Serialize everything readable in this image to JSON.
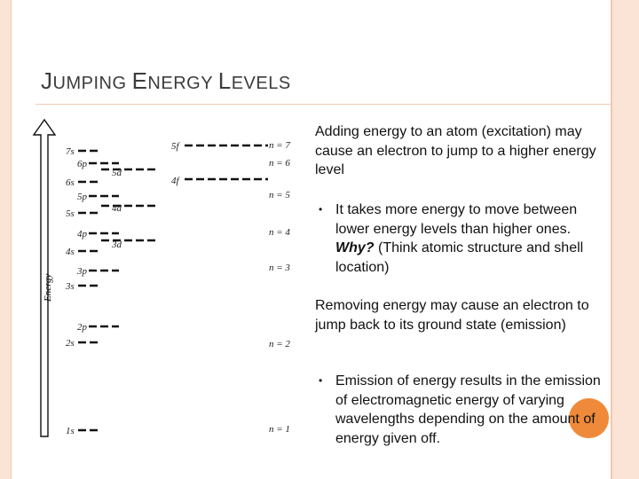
{
  "slide": {
    "title_first_J": "J",
    "title_umping": "UMPING ",
    "title_first_E": "E",
    "title_nergy": "NERGY ",
    "title_first_L": "L",
    "title_evels": "EVELS"
  },
  "text": {
    "para1": "Adding energy to an atom (excitation) may cause an electron to jump to a higher energy level",
    "bullet1_main": "It takes more energy to move between lower energy levels than higher ones. ",
    "bullet1_why": "Why?",
    "bullet1_rest": " (Think atomic structure and shell location)",
    "para2": "Removing energy  may cause an electron to jump back to its ground state (emission)",
    "bullet2": "Emission of energy results in the emission of  electromagnetic energy of varying wavelengths depending on the amount of energy given off.",
    "bullet_char": "•"
  },
  "diagram": {
    "axis_label": "Energy",
    "orbitals": {
      "s7": "7s",
      "p6": "6p",
      "s6": "6s",
      "p5": "5p",
      "s5": "5s",
      "p4": "4p",
      "s4": "4s",
      "p3": "3p",
      "s3": "3s",
      "p2": "2p",
      "s2": "2s",
      "s1": "1s",
      "d5": "5d",
      "d4": "4d",
      "d3": "3d",
      "f5": "5f",
      "f4": "4f"
    },
    "shells": {
      "n7": "n = 7",
      "n6": "n = 6",
      "n5": "n = 5",
      "n4": "n = 4",
      "n3": "n = 3",
      "n2": "n = 2",
      "n1": "n = 1"
    }
  }
}
